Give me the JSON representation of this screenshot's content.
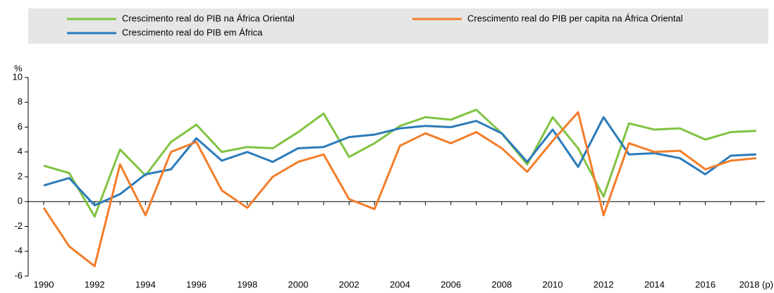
{
  "chart_data": {
    "type": "line",
    "y_label": "%",
    "categories": [
      "1990",
      null,
      "1992",
      null,
      "1994",
      null,
      "1996",
      null,
      "1998",
      null,
      "2000",
      null,
      "2002",
      null,
      "2004",
      null,
      "2006",
      null,
      "2008",
      null,
      "2010",
      null,
      "2012",
      null,
      "2014",
      null,
      "2016",
      null,
      "2018 (p)"
    ],
    "series": [
      {
        "name": "Crescimento real do PIB na África Oriental",
        "color": "#80c342",
        "values": [
          2.9,
          2.3,
          -1.2,
          4.2,
          2.1,
          4.8,
          6.2,
          4.0,
          4.4,
          4.3,
          5.6,
          7.1,
          3.6,
          4.7,
          6.1,
          6.8,
          6.6,
          7.4,
          5.5,
          3.0,
          6.8,
          4.3,
          0.4,
          6.3,
          5.8,
          5.9,
          5.0,
          5.6,
          5.7
        ]
      },
      {
        "name": "Crescimento real do PIB per capita na África Oriental",
        "color": "#f47d2a",
        "values": [
          -0.5,
          -3.6,
          -5.2,
          3.0,
          -1.1,
          4.0,
          4.8,
          0.9,
          -0.5,
          2.0,
          3.2,
          3.8,
          0.2,
          -0.6,
          4.5,
          5.5,
          4.7,
          5.6,
          4.3,
          2.4,
          4.9,
          7.2,
          -1.1,
          4.7,
          4.0,
          4.1,
          2.6,
          3.3,
          3.5
        ]
      },
      {
        "name": "Crescimento real do PIB em África",
        "color": "#2b7bba",
        "values": [
          1.3,
          1.9,
          -0.3,
          0.6,
          2.2,
          2.6,
          5.1,
          3.3,
          4.0,
          3.2,
          4.3,
          4.4,
          5.2,
          5.4,
          5.9,
          6.1,
          6.0,
          6.5,
          5.5,
          3.2,
          5.8,
          2.8,
          6.8,
          3.8,
          3.9,
          3.5,
          2.2,
          3.7,
          3.8
        ]
      }
    ],
    "ylim": [
      -6,
      10
    ],
    "yticks": [
      -6,
      -4,
      -2,
      0,
      2,
      4,
      6,
      8,
      10
    ],
    "grid": false
  }
}
